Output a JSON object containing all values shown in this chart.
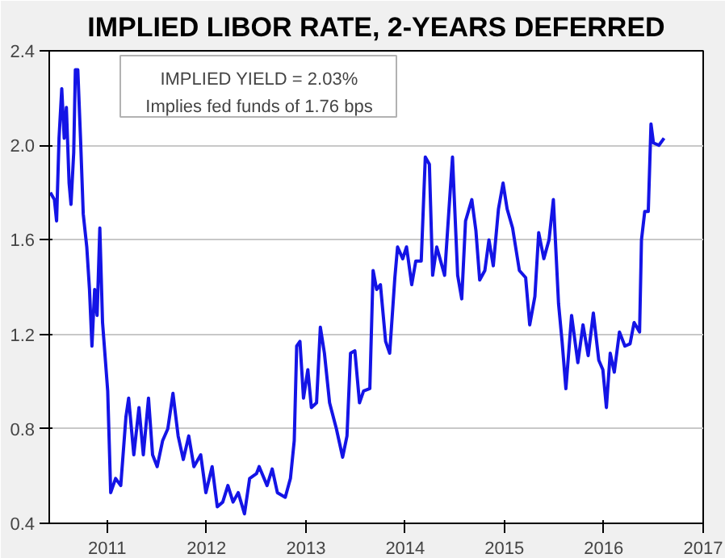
{
  "chart_data": {
    "type": "line",
    "title": "IMPLIED LIBOR RATE, 2-YEARS DEFERRED",
    "annotations": [
      "IMPLIED YIELD = 2.03%",
      "Implies fed funds of 1.76 bps"
    ],
    "x": [
      "2010-06-06",
      "2010-06-21",
      "2010-06-29",
      "2010-07-08",
      "2010-07-18",
      "2010-07-27",
      "2010-08-04",
      "2010-08-14",
      "2010-08-21",
      "2010-08-31",
      "2010-09-06",
      "2010-09-15",
      "2010-09-25",
      "2010-10-05",
      "2010-10-18",
      "2010-10-28",
      "2010-11-06",
      "2010-11-16",
      "2010-11-25",
      "2010-12-05",
      "2010-12-15",
      "2011-01-03",
      "2011-01-14",
      "2011-02-01",
      "2011-02-20",
      "2011-03-11",
      "2011-03-21",
      "2011-04-09",
      "2011-04-28",
      "2011-05-14",
      "2011-06-02",
      "2011-06-17",
      "2011-07-04",
      "2011-07-24",
      "2011-08-12",
      "2011-08-31",
      "2011-09-19",
      "2011-10-08",
      "2011-10-28",
      "2011-11-16",
      "2011-12-11",
      "2011-12-30",
      "2012-01-22",
      "2012-02-10",
      "2012-03-01",
      "2012-03-20",
      "2012-04-08",
      "2012-04-27",
      "2012-05-20",
      "2012-06-08",
      "2012-07-03",
      "2012-07-13",
      "2012-08-11",
      "2012-08-30",
      "2012-09-18",
      "2012-10-17",
      "2012-11-05",
      "2012-11-19",
      "2012-11-28",
      "2012-12-10",
      "2012-12-23",
      "2013-01-08",
      "2013-01-21",
      "2013-02-09",
      "2013-02-23",
      "2013-03-10",
      "2013-03-29",
      "2013-04-23",
      "2013-05-16",
      "2013-06-01",
      "2013-06-14",
      "2013-06-30",
      "2013-07-17",
      "2013-08-01",
      "2013-08-24",
      "2013-09-05",
      "2013-09-18",
      "2013-10-02",
      "2013-10-21",
      "2013-11-05",
      "2013-11-24",
      "2013-12-04",
      "2013-12-23",
      "2014-01-06",
      "2014-01-25",
      "2014-02-09",
      "2014-03-01",
      "2014-03-16",
      "2014-03-31",
      "2014-04-12",
      "2014-04-27",
      "2014-05-26",
      "2014-06-10",
      "2014-06-24",
      "2014-07-13",
      "2014-07-28",
      "2014-08-11",
      "2014-09-03",
      "2014-09-18",
      "2014-10-02",
      "2014-10-21",
      "2014-11-05",
      "2014-11-21",
      "2014-12-10",
      "2014-12-27",
      "2015-01-11",
      "2015-01-31",
      "2015-02-25",
      "2015-03-20",
      "2015-04-04",
      "2015-04-23",
      "2015-05-07",
      "2015-05-26",
      "2015-06-14",
      "2015-06-30",
      "2015-07-19",
      "2015-08-01",
      "2015-08-15",
      "2015-09-05",
      "2015-09-28",
      "2015-10-17",
      "2015-11-05",
      "2015-11-24",
      "2015-12-14",
      "2015-12-29",
      "2016-01-11",
      "2016-01-25",
      "2016-02-09",
      "2016-02-28",
      "2016-03-19",
      "2016-04-07",
      "2016-04-22",
      "2016-05-12",
      "2016-05-19",
      "2016-05-31",
      "2016-06-13",
      "2016-06-23",
      "2016-07-02",
      "2016-07-22",
      "2016-08-10"
    ],
    "series": [
      {
        "color": "#1414e6",
        "values": [
          1.8,
          1.77,
          1.68,
          2.03,
          2.24,
          2.03,
          2.16,
          1.84,
          1.75,
          1.97,
          2.32,
          2.32,
          2.03,
          1.71,
          1.57,
          1.39,
          1.15,
          1.39,
          1.28,
          1.65,
          1.25,
          0.96,
          0.53,
          0.59,
          0.56,
          0.85,
          0.93,
          0.69,
          0.89,
          0.69,
          0.93,
          0.69,
          0.64,
          0.75,
          0.8,
          0.95,
          0.77,
          0.67,
          0.77,
          0.64,
          0.69,
          0.53,
          0.64,
          0.47,
          0.49,
          0.56,
          0.49,
          0.53,
          0.44,
          0.59,
          0.61,
          0.64,
          0.56,
          0.63,
          0.53,
          0.51,
          0.59,
          0.75,
          1.15,
          1.17,
          0.93,
          1.05,
          0.89,
          0.91,
          1.23,
          1.12,
          0.91,
          0.8,
          0.68,
          0.77,
          1.12,
          1.13,
          0.91,
          0.96,
          0.97,
          1.47,
          1.39,
          1.41,
          1.17,
          1.12,
          1.44,
          1.57,
          1.52,
          1.57,
          1.41,
          1.51,
          1.51,
          1.95,
          1.92,
          1.45,
          1.57,
          1.45,
          1.71,
          1.95,
          1.45,
          1.35,
          1.68,
          1.77,
          1.64,
          1.43,
          1.47,
          1.6,
          1.49,
          1.73,
          1.84,
          1.73,
          1.65,
          1.47,
          1.44,
          1.24,
          1.36,
          1.63,
          1.52,
          1.6,
          1.77,
          1.33,
          1.17,
          0.97,
          1.28,
          1.08,
          1.24,
          1.11,
          1.29,
          1.09,
          1.05,
          0.89,
          1.12,
          1.04,
          1.21,
          1.15,
          1.16,
          1.25,
          1.21,
          1.6,
          1.72,
          1.72,
          2.09,
          2.01,
          2.0,
          2.03
        ]
      }
    ],
    "xlim": [
      "2010-06-02",
      "2017-01-01"
    ],
    "xticks": [
      {
        "value": "2011-01-01",
        "label": "2011"
      },
      {
        "value": "2012-01-01",
        "label": "2012"
      },
      {
        "value": "2013-01-01",
        "label": "2013"
      },
      {
        "value": "2014-01-01",
        "label": "2014"
      },
      {
        "value": "2015-01-01",
        "label": "2015"
      },
      {
        "value": "2016-01-01",
        "label": "2016"
      },
      {
        "value": "2017-01-01",
        "label": "2017"
      }
    ],
    "ylim": [
      0.4,
      2.4
    ],
    "yticks": [
      {
        "value": 0.4,
        "label": "0.4"
      },
      {
        "value": 0.8,
        "label": "0.8"
      },
      {
        "value": 1.2,
        "label": "1.2"
      },
      {
        "value": 1.6,
        "label": "1.6"
      },
      {
        "value": 2.0,
        "label": "2.0"
      },
      {
        "value": 2.4,
        "label": "2.4"
      }
    ],
    "grid": "y",
    "line_style": "solid"
  }
}
